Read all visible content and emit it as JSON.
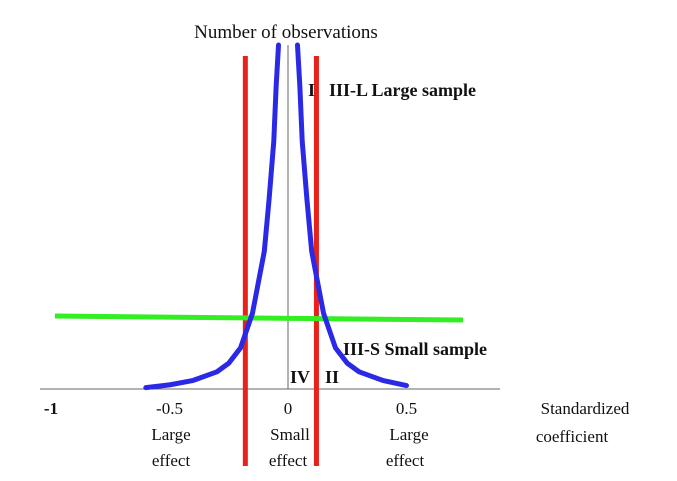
{
  "chart_data": {
    "type": "line",
    "title": "Number of observations",
    "xlabel": [
      "Standardized",
      "coefficient"
    ],
    "ylabel": "",
    "xlim": [
      -1,
      0.75
    ],
    "ticks": [
      {
        "value": -1,
        "label": "-1"
      },
      {
        "value": -0.5,
        "label": "-0.5"
      },
      {
        "value": 0,
        "label": "0"
      },
      {
        "value": 0.5,
        "label": "0.5"
      }
    ],
    "series": [
      {
        "kind": "curve",
        "color": "#2a2ae6",
        "x": [
          -0.6,
          -0.5,
          -0.4,
          -0.3,
          -0.25,
          -0.2,
          -0.15,
          -0.1,
          -0.08,
          -0.06,
          -0.05,
          -0.04,
          0.04,
          0.05,
          0.06,
          0.08,
          0.1,
          0.15,
          0.2,
          0.25,
          0.3,
          0.4,
          0.5
        ],
        "y": [
          0.4,
          1.2,
          2.5,
          5,
          7.5,
          12,
          22,
          40,
          55,
          72,
          88,
          100,
          100,
          88,
          72,
          55,
          40,
          22,
          12,
          7.5,
          5,
          2.5,
          1.0
        ],
        "ylim": [
          0,
          100
        ]
      },
      {
        "kind": "vertical-line",
        "color": "#e8221a",
        "x": [
          -0.18
        ]
      },
      {
        "kind": "vertical-line",
        "color": "#e8221a",
        "x": [
          0.12
        ]
      },
      {
        "kind": "threshold-line",
        "color": "#33ee22",
        "x": [
          -1,
          0.75
        ],
        "y": [
          24,
          23
        ]
      }
    ],
    "annotations": [
      {
        "text": "I",
        "region": "upper-center"
      },
      {
        "text": "III-L Large sample",
        "region": "upper-right"
      },
      {
        "text": "III-S Small sample",
        "region": "middle-right"
      },
      {
        "text": "IV",
        "region": "bottom-center-left"
      },
      {
        "text": "II",
        "region": "bottom-center-right"
      }
    ],
    "effect_labels": [
      {
        "line1": "Large",
        "line2": "effect",
        "region": "left"
      },
      {
        "line1": "Small",
        "line2": "effect",
        "region": "center"
      },
      {
        "line1": "Large",
        "line2": "effect",
        "region": "right"
      }
    ],
    "grid": false,
    "legend": "none"
  }
}
